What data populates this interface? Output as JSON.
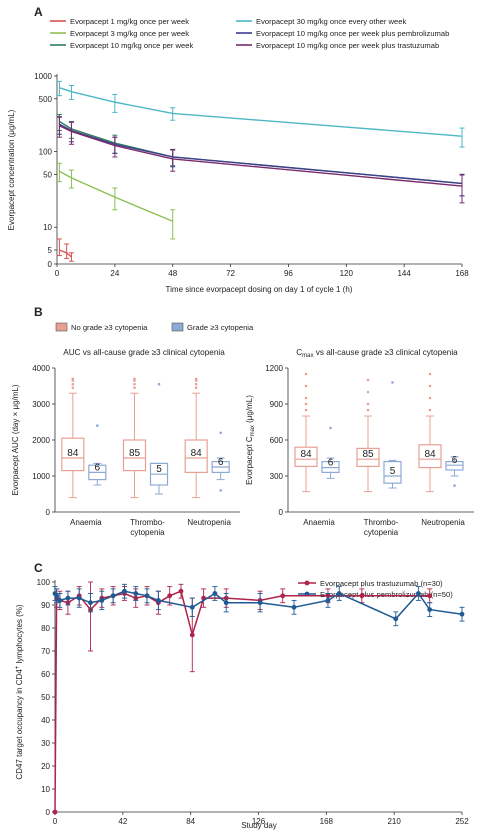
{
  "panels": {
    "a": {
      "letter": "A",
      "chart_data": {
        "type": "line",
        "title": "",
        "xlabel": "Time since evorpacept dosing on day 1 of cycle 1 (h)",
        "ylabel": "Evorpacept concentration (μg/mL)",
        "xlim": [
          0,
          168
        ],
        "x_ticks": [
          "0",
          "24",
          "48",
          "72",
          "96",
          "120",
          "144",
          "168"
        ],
        "y_scale": "log (axis 0 to 1000)",
        "y_ticks": [
          "0",
          "5",
          "10",
          "50",
          "100",
          "500",
          "1000"
        ],
        "legend_position": "top",
        "series": [
          {
            "name": "Evorpacept 1 mg/kg once per week",
            "color": "#d9534f",
            "x": [
              1,
              4,
              6
            ],
            "y": [
              5,
              4,
              2.5
            ],
            "err": [
              2,
              2,
              1.5
            ]
          },
          {
            "name": "Evorpacept 3 mg/kg once per week",
            "color": "#8cc152",
            "x": [
              1,
              6,
              24,
              48
            ],
            "y": [
              55,
              45,
              25,
              12
            ],
            "err": [
              15,
              12,
              8,
              5
            ]
          },
          {
            "name": "Evorpacept 10 mg/kg once per week",
            "color": "#2e7d5b",
            "x": [
              1,
              6,
              24,
              48,
              168
            ],
            "y": [
              250,
              200,
              130,
              85,
              38
            ],
            "err": [
              60,
              50,
              35,
              20,
              12
            ]
          },
          {
            "name": "Evorpacept 30 mg/kg once every other week",
            "color": "#4bb8c4",
            "x": [
              1,
              6,
              24,
              48,
              168
            ],
            "y": [
              700,
              620,
              450,
              320,
              160
            ],
            "err": [
              150,
              130,
              120,
              60,
              45
            ]
          },
          {
            "name": "Evorpacept 10 mg/kg once per week plus pembrolizumab",
            "color": "#3f3f8f",
            "x": [
              1,
              6,
              24,
              48,
              168
            ],
            "y": [
              230,
              190,
              125,
              85,
              38
            ],
            "err": [
              60,
              55,
              30,
              22,
              12
            ]
          },
          {
            "name": "Evorpacept 10 mg/kg once per week plus trastuzumab",
            "color": "#7a2b6d",
            "x": [
              1,
              6,
              24,
              48,
              168
            ],
            "y": [
              220,
              185,
              120,
              80,
              35
            ],
            "err": [
              65,
              60,
              35,
              25,
              14
            ]
          }
        ]
      }
    },
    "b": {
      "letter": "B",
      "legend": [
        {
          "name": "No grade ≥3 cytopenia",
          "color": "#e8a093"
        },
        {
          "name": "Grade ≥3 cytopenia",
          "color": "#8ea9d4"
        }
      ],
      "charts": [
        {
          "chart_data": {
            "type": "box",
            "title": "AUC vs all-cause grade ≥3 clinical cytopenia",
            "ylabel": "Evorpacept AUC (day × μg/mL)",
            "ylim": [
              0,
              4000
            ],
            "y_ticks": [
              "0",
              "1000",
              "2000",
              "3000",
              "4000"
            ],
            "categories": [
              "Anaemia",
              "Thrombo-|cytopenia",
              "Neutropenia"
            ],
            "groups": [
              [
                {
                  "n": "84",
                  "min": 400,
                  "q1": 1150,
                  "median": 1500,
                  "q3": 2050,
                  "max": 3300,
                  "outliers": [
                    3450,
                    3550,
                    3650,
                    3700
                  ]
                },
                {
                  "n": "6",
                  "min": 750,
                  "q1": 900,
                  "median": 1100,
                  "q3": 1300,
                  "max": 1350,
                  "outliers": [
                    2400
                  ]
                }
              ],
              [
                {
                  "n": "85",
                  "min": 400,
                  "q1": 1150,
                  "median": 1500,
                  "q3": 2000,
                  "max": 3300,
                  "outliers": [
                    3450,
                    3550,
                    3650,
                    3700
                  ]
                },
                {
                  "n": "5",
                  "min": 500,
                  "q1": 750,
                  "median": 1050,
                  "q3": 1350,
                  "max": 1350,
                  "outliers": [
                    3550
                  ]
                }
              ],
              [
                {
                  "n": "84",
                  "min": 400,
                  "q1": 1100,
                  "median": 1500,
                  "q3": 2000,
                  "max": 3300,
                  "outliers": [
                    3450,
                    3550,
                    3650,
                    3700
                  ]
                },
                {
                  "n": "6",
                  "min": 900,
                  "q1": 1100,
                  "median": 1250,
                  "q3": 1400,
                  "max": 1500,
                  "outliers": [
                    600,
                    2200
                  ]
                }
              ]
            ]
          }
        },
        {
          "chart_data": {
            "type": "box",
            "title_main": "C",
            "title_sub": "max",
            "title_rest": " vs all-cause grade ≥3 clinical cytopenia",
            "ylabel_main": "Evorpacept C",
            "ylabel_sub": "max",
            "ylabel_rest": " (μg/mL)",
            "ylim": [
              0,
              1200
            ],
            "y_ticks": [
              "0",
              "300",
              "600",
              "900",
              "1200"
            ],
            "categories": [
              "Anaemia",
              "Thrombo-|cytopenia",
              "Neutropenia"
            ],
            "groups": [
              [
                {
                  "n": "84",
                  "min": 170,
                  "q1": 380,
                  "median": 440,
                  "q3": 540,
                  "max": 800,
                  "outliers": [
                    850,
                    900,
                    950,
                    1050,
                    1150
                  ]
                },
                {
                  "n": "6",
                  "min": 280,
                  "q1": 330,
                  "median": 370,
                  "q3": 420,
                  "max": 450,
                  "outliers": [
                    700
                  ]
                }
              ],
              [
                {
                  "n": "85",
                  "min": 170,
                  "q1": 380,
                  "median": 440,
                  "q3": 530,
                  "max": 800,
                  "outliers": [
                    850,
                    900,
                    1000,
                    1100
                  ]
                },
                {
                  "n": "5",
                  "min": 200,
                  "q1": 240,
                  "median": 300,
                  "q3": 420,
                  "max": 430,
                  "outliers": [
                    1080
                  ]
                }
              ],
              [
                {
                  "n": "84",
                  "min": 170,
                  "q1": 370,
                  "median": 440,
                  "q3": 560,
                  "max": 800,
                  "outliers": [
                    850,
                    950,
                    1050,
                    1150
                  ]
                },
                {
                  "n": "6",
                  "min": 300,
                  "q1": 350,
                  "median": 390,
                  "q3": 420,
                  "max": 460,
                  "outliers": [
                    220
                  ]
                }
              ]
            ]
          }
        }
      ]
    },
    "c": {
      "letter": "C",
      "chart_data": {
        "type": "line",
        "xlabel": "Study day",
        "ylabel_main": "CD47 target occupancy in CD4",
        "ylabel_sup": "+",
        "ylabel_rest": " lymphocytes (%)",
        "xlim": [
          0,
          252
        ],
        "ylim": [
          0,
          100
        ],
        "x_ticks": [
          "0",
          "42",
          "84",
          "126",
          "168",
          "210",
          "252"
        ],
        "y_ticks": [
          "0",
          "10",
          "20",
          "30",
          "40",
          "50",
          "60",
          "70",
          "80",
          "90",
          "100"
        ],
        "legend_position": "top-right",
        "series": [
          {
            "name": "Evorpacept plus trastuzumab (n=30)",
            "color": "#b0234a",
            "x": [
              0,
              1,
              3,
              8,
              15,
              22,
              29,
              36,
              43,
              50,
              57,
              64,
              71,
              78,
              85,
              92,
              106,
              127,
              141,
              169,
              190,
              232
            ],
            "y": [
              0,
              93,
              92,
              91,
              94,
              88,
              93,
              94,
              95,
              93,
              94,
              91,
              94,
              96,
              77,
              93,
              93,
              92,
              94,
              94,
              94,
              94
            ],
            "err": [
              0,
              4,
              4,
              5,
              4,
              18,
              4,
              4,
              3,
              4,
              4,
              5,
              4,
              3,
              16,
              4,
              4,
              4,
              3,
              3,
              3,
              3
            ]
          },
          {
            "name": "Evorpacept plus pembrolizumab (n=50)",
            "color": "#1f5a94",
            "x": [
              0,
              1,
              3,
              8,
              15,
              22,
              29,
              36,
              43,
              50,
              57,
              64,
              85,
              99,
              106,
              127,
              148,
              169,
              176,
              211,
              225,
              232,
              252
            ],
            "y": [
              95,
              94,
              92,
              93,
              93,
              91,
              92,
              94,
              96,
              95,
              94,
              92,
              89,
              95,
              91,
              91,
              89,
              92,
              95,
              84,
              95,
              88,
              86
            ],
            "err": [
              3,
              3,
              3,
              3,
              4,
              4,
              4,
              3,
              3,
              3,
              3,
              4,
              4,
              3,
              4,
              4,
              3,
              3,
              3,
              3,
              3,
              3,
              3
            ]
          }
        ]
      }
    }
  }
}
